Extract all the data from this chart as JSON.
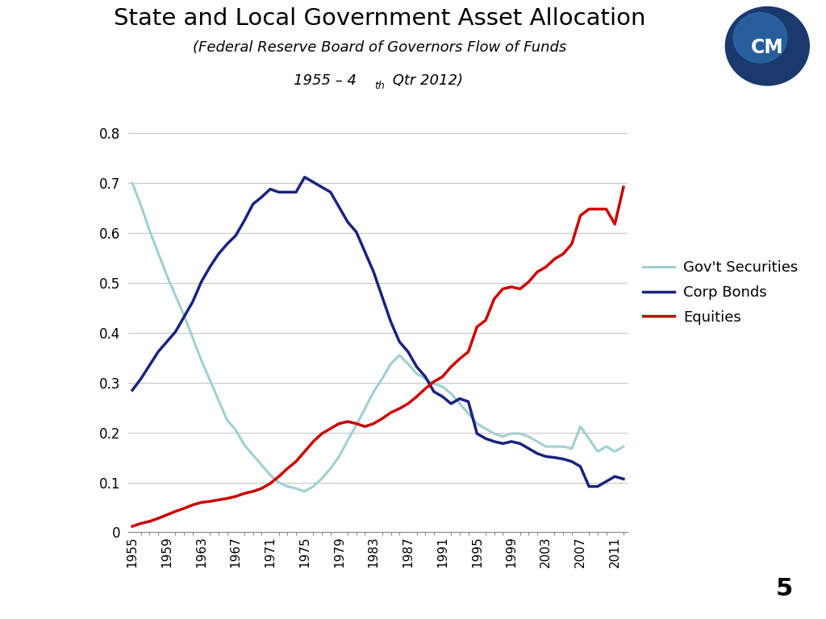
{
  "title": "State and Local Government Asset Allocation",
  "background_color": "#ffffff",
  "header_bg": "#f0f0f0",
  "left_bar_color": "#2e3b9e",
  "years": [
    1955,
    1956,
    1957,
    1958,
    1959,
    1960,
    1961,
    1962,
    1963,
    1964,
    1965,
    1966,
    1967,
    1968,
    1969,
    1970,
    1971,
    1972,
    1973,
    1974,
    1975,
    1976,
    1977,
    1978,
    1979,
    1980,
    1981,
    1982,
    1983,
    1984,
    1985,
    1986,
    1987,
    1988,
    1989,
    1990,
    1991,
    1992,
    1993,
    1994,
    1995,
    1996,
    1997,
    1998,
    1999,
    2000,
    2001,
    2002,
    2003,
    2004,
    2005,
    2006,
    2007,
    2008,
    2009,
    2010,
    2011,
    2012
  ],
  "gov_securities": [
    0.7,
    0.655,
    0.605,
    0.56,
    0.515,
    0.475,
    0.435,
    0.39,
    0.345,
    0.305,
    0.265,
    0.225,
    0.205,
    0.175,
    0.155,
    0.135,
    0.115,
    0.1,
    0.092,
    0.088,
    0.082,
    0.092,
    0.108,
    0.128,
    0.152,
    0.185,
    0.215,
    0.248,
    0.282,
    0.308,
    0.338,
    0.355,
    0.338,
    0.318,
    0.308,
    0.298,
    0.292,
    0.278,
    0.258,
    0.238,
    0.218,
    0.208,
    0.198,
    0.192,
    0.198,
    0.198,
    0.192,
    0.182,
    0.172,
    0.172,
    0.172,
    0.168,
    0.212,
    0.188,
    0.162,
    0.172,
    0.162,
    0.172
  ],
  "corp_bonds": [
    0.285,
    0.308,
    0.335,
    0.362,
    0.382,
    0.402,
    0.432,
    0.462,
    0.502,
    0.532,
    0.558,
    0.578,
    0.595,
    0.625,
    0.658,
    0.672,
    0.688,
    0.682,
    0.682,
    0.682,
    0.712,
    0.702,
    0.692,
    0.682,
    0.652,
    0.622,
    0.602,
    0.562,
    0.522,
    0.472,
    0.422,
    0.382,
    0.362,
    0.332,
    0.312,
    0.282,
    0.272,
    0.258,
    0.268,
    0.262,
    0.198,
    0.188,
    0.182,
    0.178,
    0.182,
    0.178,
    0.168,
    0.158,
    0.152,
    0.15,
    0.147,
    0.142,
    0.132,
    0.092,
    0.092,
    0.102,
    0.112,
    0.107
  ],
  "equities": [
    0.012,
    0.018,
    0.022,
    0.028,
    0.035,
    0.042,
    0.048,
    0.055,
    0.06,
    0.062,
    0.065,
    0.068,
    0.072,
    0.078,
    0.082,
    0.088,
    0.098,
    0.112,
    0.128,
    0.142,
    0.162,
    0.182,
    0.198,
    0.208,
    0.218,
    0.222,
    0.218,
    0.212,
    0.218,
    0.228,
    0.24,
    0.248,
    0.258,
    0.272,
    0.288,
    0.302,
    0.312,
    0.332,
    0.348,
    0.362,
    0.412,
    0.425,
    0.468,
    0.488,
    0.492,
    0.488,
    0.502,
    0.522,
    0.532,
    0.548,
    0.558,
    0.578,
    0.635,
    0.648,
    0.648,
    0.648,
    0.618,
    0.692
  ],
  "gov_color": "#a0d0d0",
  "corp_color": "#1a237e",
  "equity_color": "#cc0000",
  "ylim": [
    0,
    0.85
  ],
  "yticks": [
    0,
    0.1,
    0.2,
    0.3,
    0.4,
    0.5,
    0.6,
    0.7,
    0.8
  ],
  "ytick_labels": [
    "0",
    "0.1",
    "0.2",
    "0.3",
    "0.4",
    "0.5",
    "0.6",
    "0.7",
    "0.8"
  ],
  "xtick_years": [
    1955,
    1959,
    1963,
    1967,
    1971,
    1975,
    1979,
    1983,
    1987,
    1991,
    1995,
    1999,
    2003,
    2007,
    2011
  ],
  "legend_labels": [
    "Gov't Securities",
    "Corp Bonds",
    "Equities"
  ],
  "page_number": "5"
}
